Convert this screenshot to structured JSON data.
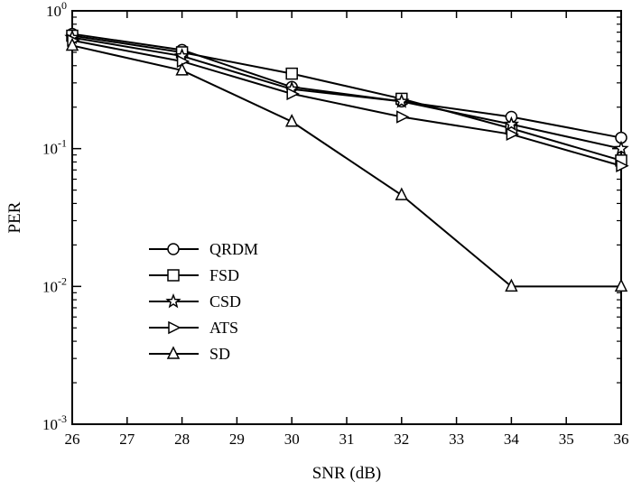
{
  "chart_data": {
    "type": "line",
    "xlabel": "SNR (dB)",
    "ylabel": "PER",
    "yscale": "log",
    "xlim": [
      26,
      36
    ],
    "ylim": [
      0.001,
      1
    ],
    "xticks": [
      "26",
      "27",
      "28",
      "29",
      "30",
      "31",
      "32",
      "33",
      "34",
      "35",
      "36"
    ],
    "yticks": [
      {
        "base": "10",
        "exp": "0",
        "value": 1
      },
      {
        "base": "10",
        "exp": "-1",
        "value": 0.1
      },
      {
        "base": "10",
        "exp": "-2",
        "value": 0.01
      },
      {
        "base": "10",
        "exp": "-3",
        "value": 0.001
      }
    ],
    "legend_position": "center-left",
    "x": [
      26,
      28,
      30,
      32,
      34,
      36
    ],
    "series": [
      {
        "name": "QRDM",
        "marker": "circle",
        "values": [
          0.68,
          0.52,
          0.28,
          0.22,
          0.17,
          0.12
        ]
      },
      {
        "name": "FSD",
        "marker": "square",
        "values": [
          0.66,
          0.5,
          0.35,
          0.23,
          0.14,
          0.082
        ]
      },
      {
        "name": "CSD",
        "marker": "star",
        "values": [
          0.64,
          0.47,
          0.27,
          0.22,
          0.15,
          0.1
        ]
      },
      {
        "name": "ATS",
        "marker": "triangle-right",
        "values": [
          0.61,
          0.43,
          0.25,
          0.17,
          0.127,
          0.075
        ]
      },
      {
        "name": "SD",
        "marker": "triangle-up",
        "values": [
          0.56,
          0.37,
          0.157,
          0.046,
          0.01,
          0.01
        ]
      }
    ]
  }
}
